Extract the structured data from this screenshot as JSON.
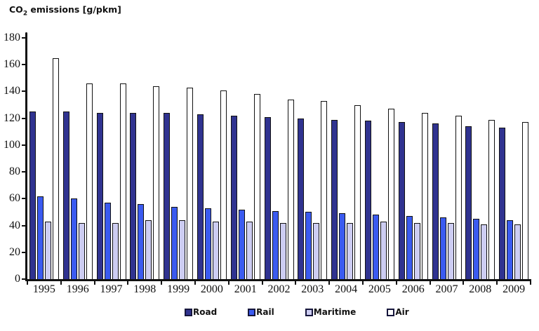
{
  "title": {
    "prefix": "CO",
    "subscript": "2",
    "suffix": " emissions [g/pkm]"
  },
  "chart_data": {
    "type": "bar",
    "title": "CO2 emissions [g/pkm]",
    "ylabel": "CO2 emissions [g/pkm]",
    "xlabel": "",
    "categories": [
      "1995",
      "1996",
      "1997",
      "1998",
      "1999",
      "2000",
      "2001",
      "2002",
      "2003",
      "2004",
      "2005",
      "2006",
      "2007",
      "2008",
      "2009"
    ],
    "series": [
      {
        "name": "Road",
        "color": "#303390",
        "values": [
          125,
          125,
          124,
          124,
          124,
          123,
          122,
          121,
          120,
          119,
          118,
          117,
          116,
          114,
          113
        ]
      },
      {
        "name": "Rail",
        "color": "#3B5BF0",
        "values": [
          62,
          60,
          57,
          56,
          54,
          53,
          52,
          51,
          50,
          49,
          48,
          47,
          46,
          45,
          44
        ]
      },
      {
        "name": "Maritime",
        "color": "#CDCDF2",
        "values": [
          43,
          42,
          42,
          44,
          44,
          43,
          43,
          42,
          42,
          42,
          43,
          42,
          42,
          41,
          41
        ]
      },
      {
        "name": "Air",
        "color": "#FFFFFF",
        "values": [
          165,
          146,
          146,
          144,
          143,
          141,
          138,
          134,
          133,
          130,
          127,
          124,
          122,
          119,
          117
        ]
      }
    ],
    "ylim": [
      0,
      180
    ],
    "ytick_step": 20,
    "yticks": [
      0,
      20,
      40,
      60,
      80,
      100,
      120,
      140,
      160,
      180
    ],
    "grid": false,
    "legend_position": "bottom",
    "bar_outline_color": "#111111",
    "axis_color": "#111111"
  }
}
